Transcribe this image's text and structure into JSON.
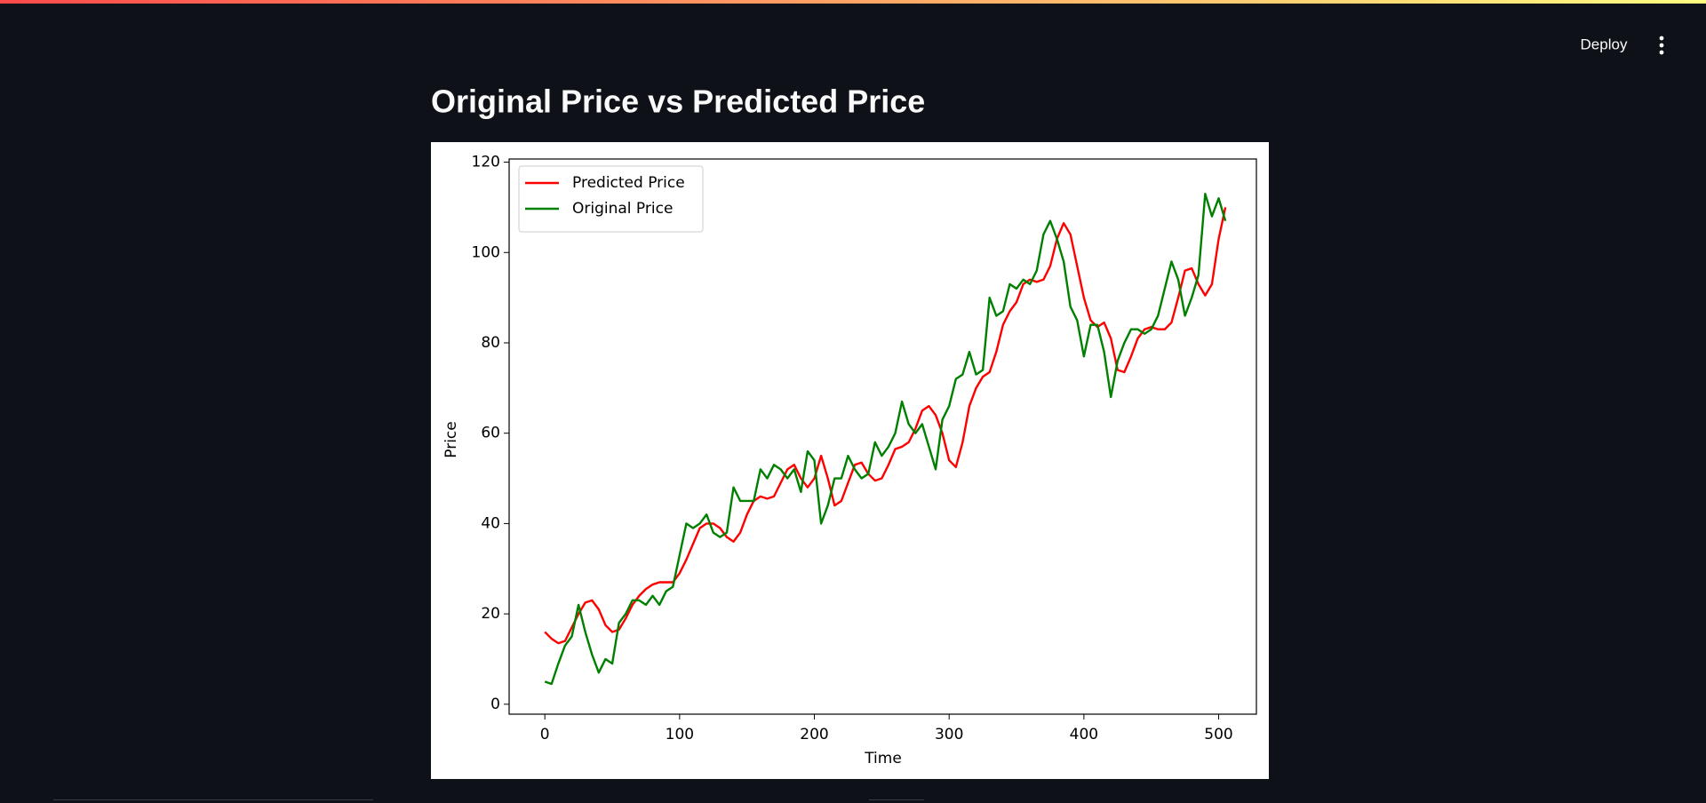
{
  "header": {
    "deploy": "Deploy"
  },
  "chart_data": {
    "type": "line",
    "title": "Original Price vs Predicted Price",
    "x_label": "Time",
    "y_label": "Price",
    "x": [
      0,
      5,
      10,
      15,
      20,
      25,
      30,
      35,
      40,
      45,
      50,
      55,
      60,
      65,
      70,
      75,
      80,
      85,
      90,
      95,
      100,
      105,
      110,
      115,
      120,
      125,
      130,
      135,
      140,
      145,
      150,
      155,
      160,
      165,
      170,
      175,
      180,
      185,
      190,
      195,
      200,
      205,
      210,
      215,
      220,
      225,
      230,
      235,
      240,
      245,
      250,
      255,
      260,
      265,
      270,
      275,
      280,
      285,
      290,
      295,
      300,
      305,
      310,
      315,
      320,
      325,
      330,
      335,
      340,
      345,
      350,
      355,
      360,
      365,
      370,
      375,
      380,
      385,
      390,
      395,
      400,
      405,
      410,
      415,
      420,
      425,
      430,
      435,
      440,
      445,
      450,
      455,
      460,
      465,
      470,
      475,
      480,
      485,
      490,
      495,
      500,
      505
    ],
    "series": [
      {
        "name": "Predicted Price",
        "color": "#ff0000",
        "values": [
          16,
          14.5,
          13.5,
          14,
          17,
          20,
          22.5,
          23,
          21,
          17.5,
          16,
          16.5,
          19,
          22,
          24,
          25.5,
          26.5,
          27,
          27,
          27,
          29,
          32,
          35.5,
          39,
          40,
          40,
          39,
          37,
          36,
          38,
          42,
          45,
          46,
          45.5,
          46,
          49,
          52,
          53,
          50,
          48,
          50,
          55,
          50,
          44,
          45,
          49,
          53,
          53.5,
          51,
          49.5,
          50,
          53,
          56.5,
          57,
          58,
          61,
          65,
          66,
          64,
          60,
          54,
          52.5,
          58,
          66,
          70,
          72.5,
          73.5,
          78,
          84,
          87,
          89,
          93,
          94,
          93.5,
          94,
          97,
          103,
          106.5,
          104,
          97,
          90,
          85,
          83.5,
          84.5,
          81,
          74,
          73.5,
          77,
          81,
          83,
          83.5,
          83,
          83,
          84.5,
          90,
          96,
          96.5,
          93,
          90.5,
          93,
          103,
          110
        ]
      },
      {
        "name": "Original Price",
        "color": "#008000",
        "values": [
          5,
          4.5,
          9,
          13,
          15,
          22,
          16,
          11,
          7,
          10,
          9,
          18,
          20,
          23,
          23,
          22,
          24,
          22,
          25,
          26,
          33,
          40,
          39,
          40,
          42,
          38,
          37,
          38,
          48,
          45,
          45,
          45,
          52,
          50,
          53,
          52,
          50,
          52,
          47,
          56,
          54,
          40,
          44,
          50,
          50,
          55,
          52,
          50,
          51,
          58,
          55,
          57,
          60,
          67,
          62,
          60,
          62,
          57,
          52,
          63,
          66,
          72,
          73,
          78,
          73,
          74,
          90,
          86,
          87,
          93,
          92,
          94,
          93,
          96,
          104,
          107,
          103,
          98,
          88,
          85,
          77,
          84,
          84,
          78,
          68,
          76,
          80,
          83,
          83,
          82,
          83,
          86,
          92,
          98,
          94,
          86,
          90,
          95,
          113,
          108,
          112,
          107
        ]
      }
    ],
    "xlim": [
      -26.5,
      528
    ],
    "ylim": [
      -2.2,
      120.7
    ],
    "xticks": [
      0,
      100,
      200,
      300,
      400,
      500
    ],
    "yticks": [
      0,
      20,
      40,
      60,
      80,
      100,
      120
    ],
    "legend": "upper left",
    "grid": false
  }
}
